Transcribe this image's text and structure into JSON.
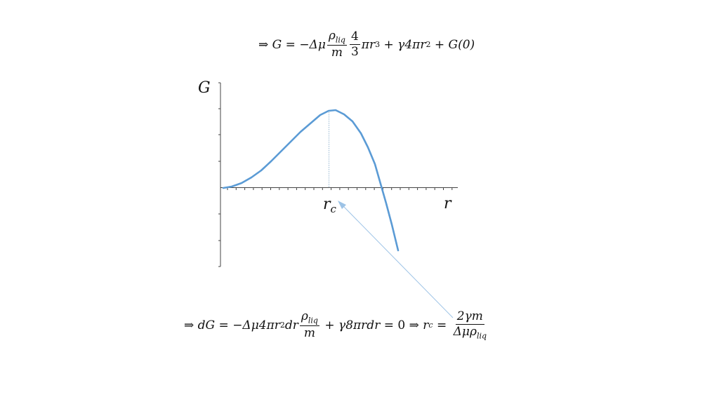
{
  "equation_top": {
    "implies": "⇒",
    "lhs": "G",
    "eq": "=",
    "minus_dmu": "−Δμ",
    "rho_num": "ρ",
    "rho_sub": "liq",
    "m_den": "m",
    "four": "4",
    "three": "3",
    "pi_r": "πr",
    "cube": "3",
    "plus1": "+",
    "gamma_term": "γ4πr",
    "square": "2",
    "plus2": "+",
    "g0": "G(0)"
  },
  "graph": {
    "y_label": "G",
    "x_label": "r",
    "rc_label": "r",
    "rc_sub": "c",
    "curve_color": "#5b9bd5",
    "arrow_color": "#9dc3e6"
  },
  "equation_bottom": {
    "implies1": "⇒",
    "dG": "dG",
    "eq1": "=",
    "term1": "−Δμ4πr",
    "sq": "2",
    "dr": "dr",
    "rho": "ρ",
    "rho_sub": "liq",
    "m": "m",
    "plus": "+",
    "term2": "γ8πrdr",
    "eq2": "= 0",
    "implies2": "⇒",
    "rc": "r",
    "rc_sub": "c",
    "eq3": "=",
    "num": "2γm",
    "den_pre": "Δμρ",
    "den_sub": "liq"
  }
}
